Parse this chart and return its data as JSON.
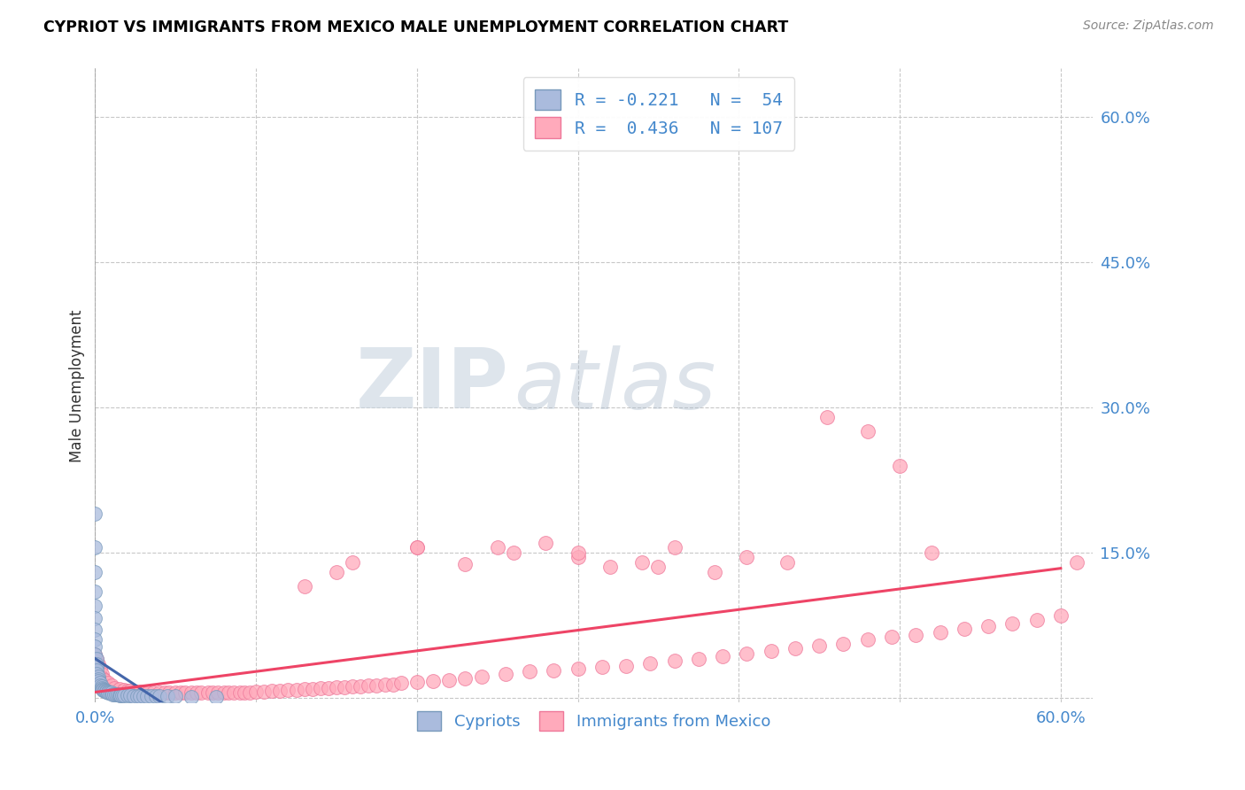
{
  "title": "CYPRIOT VS IMMIGRANTS FROM MEXICO MALE UNEMPLOYMENT CORRELATION CHART",
  "source": "Source: ZipAtlas.com",
  "ylabel": "Male Unemployment",
  "xlim": [
    0.0,
    0.62
  ],
  "ylim": [
    -0.005,
    0.65
  ],
  "yticks": [
    0.0,
    0.15,
    0.3,
    0.45,
    0.6
  ],
  "ytick_labels": [
    "",
    "15.0%",
    "30.0%",
    "45.0%",
    "60.0%"
  ],
  "xticks": [
    0.0,
    0.1,
    0.2,
    0.3,
    0.4,
    0.5,
    0.6
  ],
  "xtick_labels": [
    "0.0%",
    "",
    "",
    "",
    "",
    "",
    "60.0%"
  ],
  "grid_color": "#c8c8c8",
  "background_color": "#ffffff",
  "watermark_zip": "ZIP",
  "watermark_atlas": "atlas",
  "blue_color": "#aabbdd",
  "pink_color": "#ffaabb",
  "blue_edge": "#7799bb",
  "pink_edge": "#ee7799",
  "trend_blue": "#4466aa",
  "trend_pink": "#ee4466",
  "blue_scatter_x": [
    0.0,
    0.0,
    0.0,
    0.0,
    0.0,
    0.0,
    0.0,
    0.0,
    0.0,
    0.0,
    0.001,
    0.001,
    0.001,
    0.001,
    0.001,
    0.002,
    0.002,
    0.002,
    0.003,
    0.003,
    0.004,
    0.004,
    0.005,
    0.005,
    0.006,
    0.006,
    0.007,
    0.007,
    0.008,
    0.008,
    0.009,
    0.01,
    0.011,
    0.012,
    0.013,
    0.014,
    0.015,
    0.016,
    0.017,
    0.018,
    0.02,
    0.022,
    0.024,
    0.026,
    0.028,
    0.03,
    0.032,
    0.035,
    0.038,
    0.04,
    0.045,
    0.05,
    0.06,
    0.075
  ],
  "blue_scatter_y": [
    0.19,
    0.155,
    0.13,
    0.11,
    0.095,
    0.082,
    0.07,
    0.06,
    0.053,
    0.045,
    0.04,
    0.035,
    0.032,
    0.028,
    0.025,
    0.022,
    0.019,
    0.017,
    0.015,
    0.013,
    0.012,
    0.01,
    0.009,
    0.008,
    0.008,
    0.007,
    0.007,
    0.006,
    0.006,
    0.005,
    0.005,
    0.005,
    0.004,
    0.004,
    0.004,
    0.004,
    0.003,
    0.003,
    0.003,
    0.003,
    0.003,
    0.003,
    0.002,
    0.002,
    0.002,
    0.002,
    0.002,
    0.002,
    0.002,
    0.002,
    0.002,
    0.002,
    0.001,
    0.001
  ],
  "pink_scatter_x": [
    0.0,
    0.001,
    0.002,
    0.003,
    0.004,
    0.005,
    0.006,
    0.008,
    0.01,
    0.012,
    0.015,
    0.018,
    0.02,
    0.022,
    0.025,
    0.028,
    0.03,
    0.033,
    0.036,
    0.04,
    0.043,
    0.046,
    0.05,
    0.053,
    0.056,
    0.06,
    0.063,
    0.066,
    0.07,
    0.073,
    0.076,
    0.08,
    0.083,
    0.086,
    0.09,
    0.093,
    0.096,
    0.1,
    0.105,
    0.11,
    0.115,
    0.12,
    0.125,
    0.13,
    0.135,
    0.14,
    0.145,
    0.15,
    0.155,
    0.16,
    0.165,
    0.17,
    0.175,
    0.18,
    0.185,
    0.19,
    0.2,
    0.21,
    0.22,
    0.23,
    0.24,
    0.255,
    0.27,
    0.285,
    0.3,
    0.315,
    0.33,
    0.345,
    0.36,
    0.375,
    0.39,
    0.405,
    0.42,
    0.435,
    0.45,
    0.465,
    0.48,
    0.495,
    0.51,
    0.525,
    0.54,
    0.555,
    0.57,
    0.585,
    0.6,
    0.61,
    0.15,
    0.2,
    0.25,
    0.3,
    0.35,
    0.13,
    0.16,
    0.2,
    0.23,
    0.26,
    0.28,
    0.3,
    0.32,
    0.34,
    0.36,
    0.385,
    0.405,
    0.43,
    0.455,
    0.48,
    0.5,
    0.52
  ],
  "pink_scatter_y": [
    0.045,
    0.04,
    0.035,
    0.03,
    0.025,
    0.02,
    0.018,
    0.015,
    0.013,
    0.01,
    0.009,
    0.008,
    0.007,
    0.007,
    0.006,
    0.006,
    0.005,
    0.005,
    0.005,
    0.005,
    0.005,
    0.005,
    0.005,
    0.005,
    0.005,
    0.005,
    0.005,
    0.005,
    0.005,
    0.005,
    0.005,
    0.005,
    0.005,
    0.005,
    0.005,
    0.005,
    0.005,
    0.006,
    0.006,
    0.007,
    0.007,
    0.008,
    0.008,
    0.009,
    0.009,
    0.01,
    0.01,
    0.011,
    0.011,
    0.012,
    0.012,
    0.013,
    0.013,
    0.014,
    0.014,
    0.015,
    0.016,
    0.017,
    0.018,
    0.02,
    0.022,
    0.025,
    0.027,
    0.028,
    0.03,
    0.032,
    0.033,
    0.036,
    0.038,
    0.04,
    0.043,
    0.046,
    0.048,
    0.051,
    0.054,
    0.056,
    0.06,
    0.063,
    0.065,
    0.068,
    0.071,
    0.074,
    0.077,
    0.08,
    0.085,
    0.14,
    0.13,
    0.155,
    0.155,
    0.145,
    0.135,
    0.115,
    0.14,
    0.155,
    0.138,
    0.15,
    0.16,
    0.15,
    0.135,
    0.14,
    0.155,
    0.13,
    0.145,
    0.14,
    0.29,
    0.275,
    0.24,
    0.15
  ]
}
